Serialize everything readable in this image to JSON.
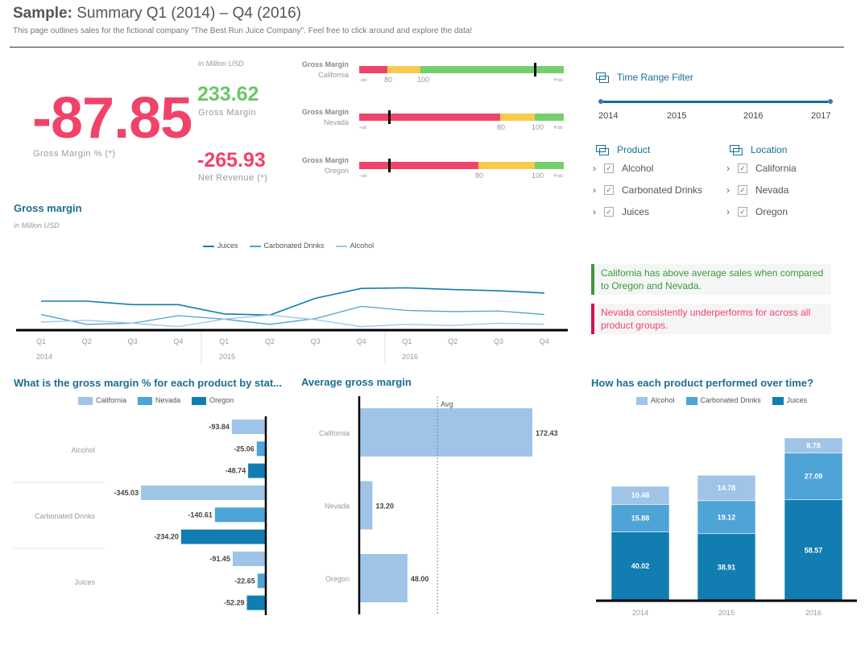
{
  "header": {
    "title_bold": "Sample:",
    "title_rest": " Summary Q1 (2014) – Q4 (2016)",
    "subtitle": "This page outlines sales for the fictional company \"The Best Run Juice Company\". Feel free to click around and explore the data!"
  },
  "kpis": {
    "gross_margin_pct": {
      "value": "-87.85",
      "label": "Gross Margin % (*)"
    },
    "unit": "in Million USD",
    "gross_margin": {
      "value": "233.62",
      "label": "Gross Margin"
    },
    "net_revenue": {
      "value": "-265.93",
      "label": "Net Revenue (*)"
    }
  },
  "bullets": [
    {
      "title": "Gross Margin",
      "state": "California",
      "ticks": [
        "-∞",
        "80",
        "100",
        "+∞"
      ]
    },
    {
      "title": "Gross Margin",
      "state": "Nevada",
      "ticks": [
        "-∞",
        "80",
        "100",
        "+∞"
      ]
    },
    {
      "title": "Gross Margin",
      "state": "Oregon",
      "ticks": [
        "-∞",
        "80",
        "100",
        "+∞"
      ]
    }
  ],
  "filters": {
    "time_title": "Time Range Filter",
    "years": [
      "2014",
      "2015",
      "2016",
      "2017"
    ],
    "product_title": "Product",
    "products": [
      "Alcohol",
      "Carbonated Drinks",
      "Juices"
    ],
    "location_title": "Location",
    "locations": [
      "California",
      "Nevada",
      "Oregon"
    ]
  },
  "callouts": [
    {
      "text": "California has above average sales when compared to Oregon and Nevada.",
      "color": "#3a9a3a"
    },
    {
      "text": "Nevada consistently underperforms for across all product groups.",
      "color": "#e8375f"
    }
  ],
  "colors": {
    "juices": "#127db0",
    "carbonated": "#4ea3d7",
    "alcohol": "#9fc4e7",
    "red": "#f0436a",
    "yellow": "#f7cb4d",
    "green": "#74d06c",
    "title": "#1a6e95"
  },
  "chart_data": [
    {
      "type": "line",
      "title": "Gross margin",
      "subtitle": "in Million USD",
      "categories": [
        "Q1",
        "Q2",
        "Q3",
        "Q4",
        "Q1",
        "Q2",
        "Q3",
        "Q4",
        "Q1",
        "Q2",
        "Q3",
        "Q4"
      ],
      "years": [
        "2014",
        "2015",
        "2016"
      ],
      "series": [
        {
          "name": "Juices",
          "values": [
            50,
            50,
            44,
            44,
            28,
            26,
            55,
            72,
            73,
            70,
            68,
            64
          ]
        },
        {
          "name": "Carbonated Drinks",
          "values": [
            27,
            10,
            12,
            25,
            19,
            10,
            20,
            41,
            34,
            32,
            33,
            27
          ]
        },
        {
          "name": "Alcohol",
          "values": [
            14,
            17,
            12,
            6,
            19,
            26,
            18,
            6,
            10,
            8,
            12,
            10
          ]
        }
      ],
      "legend": "top",
      "grid": false
    },
    {
      "type": "bar",
      "orientation": "horizontal",
      "title": "What is the gross margin % for each product by stat...",
      "categories": [
        "Alcohol",
        "Carbonated Drinks",
        "Juices"
      ],
      "series": [
        {
          "name": "California",
          "values": [
            -93.84,
            -345.03,
            -91.45
          ]
        },
        {
          "name": "Nevada",
          "values": [
            -25.06,
            -140.61,
            -22.65
          ]
        },
        {
          "name": "Oregon",
          "values": [
            -48.74,
            -234.2,
            -52.29
          ]
        }
      ],
      "labels": [
        [
          "-93.84",
          "-25.06",
          "-48.74"
        ],
        [
          "-345.03",
          "-140.61",
          "-234.20"
        ],
        [
          "-91.45",
          "-22.65",
          "-52.29"
        ]
      ],
      "legend": "top"
    },
    {
      "type": "bar",
      "orientation": "horizontal",
      "title": "Average gross margin",
      "categories": [
        "California",
        "Nevada",
        "Oregon"
      ],
      "values": [
        172.43,
        13.2,
        48.0
      ],
      "labels": [
        "172.43",
        "13.20",
        "48.00"
      ],
      "reference_line": {
        "label": "Avg",
        "value": 77.88
      }
    },
    {
      "type": "bar",
      "stacked": true,
      "title": "How has each product performed over time?",
      "categories": [
        "2014",
        "2015",
        "2016"
      ],
      "series": [
        {
          "name": "Alcohol",
          "values": [
            10.48,
            14.78,
            8.78
          ]
        },
        {
          "name": "Carbonated Drinks",
          "values": [
            15.88,
            19.12,
            27.09
          ]
        },
        {
          "name": "Juices",
          "values": [
            40.02,
            38.91,
            58.57
          ]
        }
      ],
      "labels": {
        "Alcohol": [
          "10.48",
          "14.78",
          "8.78"
        ],
        "Carbonated Drinks": [
          "15.88",
          "19.12",
          "27.09"
        ],
        "Juices": [
          "40.02",
          "38.91",
          "58.57"
        ]
      },
      "legend": "top"
    }
  ]
}
